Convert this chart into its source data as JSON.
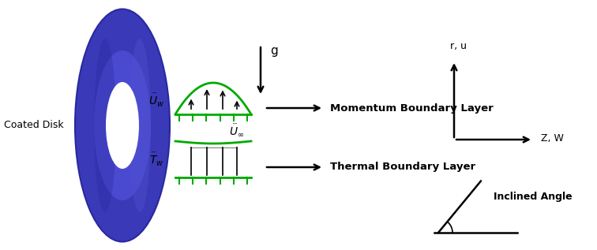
{
  "bg_color": "#ffffff",
  "torus_dark": "#3a3ab8",
  "torus_mid": "#4848c8",
  "torus_light": "#5858d8",
  "green_color": "#00aa00",
  "black": "#000000",
  "label_coated_disk": "Coated Disk",
  "label_momentum": "Momentum Boundary Layer",
  "label_thermal": "Thermal Boundary Layer",
  "label_g": "g",
  "label_ru": "r, u",
  "label_zw": "Z, W",
  "label_inclined": "Inclined Angle",
  "figw": 7.56,
  "figh": 3.17,
  "dpi": 100
}
